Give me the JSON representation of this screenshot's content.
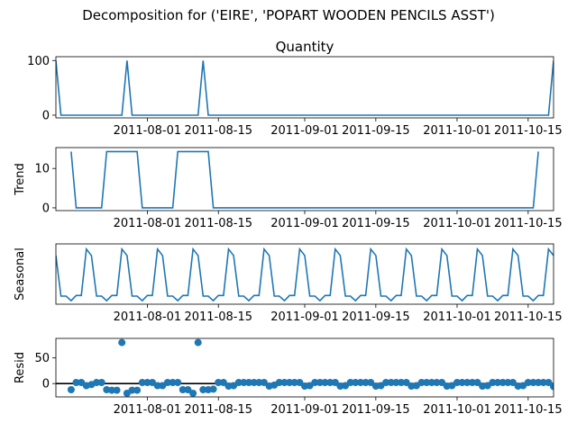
{
  "figure_title": "Decomposition for ('EIRE', 'POPART WOODEN PENCILS ASST')",
  "colors": {
    "series": "#1f77b4",
    "axis": "#000000",
    "zero_line": "#000000"
  },
  "chart_data": [
    {
      "type": "line",
      "title": "Quantity",
      "ylabel": "",
      "x_start": "2011-07-14",
      "x_end": "2011-10-20",
      "x_ticks": [
        "2011-08-01",
        "2011-08-15",
        "2011-09-01",
        "2011-09-15",
        "2011-10-01",
        "2011-10-15"
      ],
      "ylim": [
        -5,
        107
      ],
      "y_ticks": [
        0,
        100
      ],
      "series": [
        {
          "x": [
            "2011-07-14",
            "2011-07-15",
            "2011-07-27",
            "2011-07-28",
            "2011-07-29",
            "2011-08-11",
            "2011-08-12",
            "2011-08-13",
            "2011-10-19",
            "2011-10-20"
          ],
          "values": [
            100,
            0,
            0,
            100,
            0,
            0,
            100,
            0,
            0,
            100
          ]
        }
      ]
    },
    {
      "type": "line",
      "title": "",
      "ylabel": "Trend",
      "x_start": "2011-07-14",
      "x_end": "2011-10-20",
      "x_ticks": [
        "2011-08-01",
        "2011-08-15",
        "2011-09-01",
        "2011-09-15",
        "2011-10-01",
        "2011-10-15"
      ],
      "ylim": [
        -0.7,
        15.3
      ],
      "y_ticks": [
        0,
        10
      ],
      "series": [
        {
          "x": [
            "2011-07-17",
            "2011-07-18",
            "2011-07-23",
            "2011-07-24",
            "2011-07-30",
            "2011-07-31",
            "2011-08-06",
            "2011-08-07",
            "2011-08-13",
            "2011-08-14",
            "2011-10-16",
            "2011-10-17"
          ],
          "values": [
            14.29,
            0,
            0,
            14.29,
            14.29,
            0,
            0,
            14.29,
            14.29,
            0,
            0,
            14.29
          ]
        }
      ]
    },
    {
      "type": "line",
      "title": "",
      "ylabel": "Seasonal",
      "x_start": "2011-07-14",
      "x_end": "2011-10-20",
      "x_ticks": [
        "2011-08-01",
        "2011-08-15",
        "2011-09-01",
        "2011-09-15",
        "2011-10-01",
        "2011-10-15"
      ],
      "ylim": [
        -3.6,
        6.8
      ],
      "y_ticks": [],
      "period": 7,
      "pattern": [
        5.9,
        4.8,
        -2.2,
        -2.2,
        -3.0,
        -2.1,
        -2.1
      ],
      "pattern_start": "2011-07-20",
      "series": [
        {
          "values": []
        }
      ]
    },
    {
      "type": "scatter",
      "title": "",
      "ylabel": "Resid",
      "x_start": "2011-07-14",
      "x_end": "2011-10-20",
      "x_ticks": [
        "2011-08-01",
        "2011-08-15",
        "2011-09-01",
        "2011-09-15",
        "2011-10-01",
        "2011-10-15"
      ],
      "ylim": [
        -26,
        88
      ],
      "y_ticks": [
        0,
        50
      ],
      "zero_line": true,
      "series": [
        {
          "values_by_day": [
            -12,
            2,
            2,
            -4,
            -2,
            2,
            2,
            -12,
            -13,
            -13,
            80,
            -19,
            -13,
            -13,
            2,
            2,
            2,
            -4,
            -4,
            2,
            2,
            2,
            -12,
            -12,
            -19,
            80,
            -12,
            -12,
            -11,
            2,
            2,
            -5,
            -4,
            2,
            2,
            2,
            2,
            2,
            2,
            -5,
            -3,
            2,
            2,
            2,
            2,
            2,
            -5,
            -4,
            2,
            2,
            2,
            2,
            2,
            -5,
            -4,
            2,
            2,
            2,
            2,
            2,
            -5,
            -4,
            2,
            2,
            2,
            2,
            2,
            -5,
            -4,
            2,
            2,
            2,
            2,
            2,
            -5,
            -4,
            2,
            2,
            2,
            2,
            2,
            -5,
            -4,
            2,
            2,
            2,
            2,
            2,
            -5,
            -4,
            2,
            2,
            2,
            2,
            2,
            -6,
            -19
          ],
          "first_day": "2011-07-17"
        }
      ]
    }
  ]
}
